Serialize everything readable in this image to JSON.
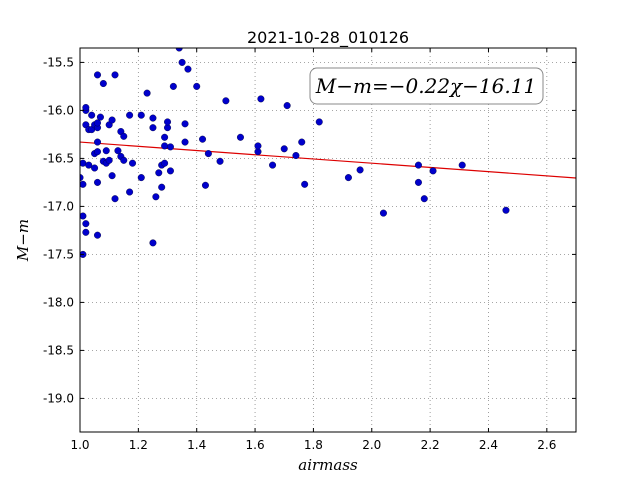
{
  "chart_data": {
    "type": "scatter",
    "title": "2021-10-28_010126",
    "xlabel": "airmass",
    "ylabel": "M−m",
    "annotation": "M−m=−0.22χ−16.11",
    "xlim": [
      1.0,
      2.7
    ],
    "ylim": [
      -15.35,
      -19.35
    ],
    "y_inverted": true,
    "grid": true,
    "x_ticks": [
      "1.0",
      "1.2",
      "1.4",
      "1.6",
      "1.8",
      "2.0",
      "2.2",
      "2.4",
      "2.6"
    ],
    "y_ticks": [
      "-15.5",
      "-16.0",
      "-16.5",
      "-17.0",
      "-17.5",
      "-18.0",
      "-18.5",
      "-19.0"
    ],
    "marker_color": "#0000cc",
    "fit_color": "#dd0000",
    "fit_line": {
      "slope": -0.22,
      "intercept": -16.11
    },
    "points": [
      [
        1.0,
        -16.7
      ],
      [
        1.01,
        -16.55
      ],
      [
        1.01,
        -17.1
      ],
      [
        1.01,
        -17.5
      ],
      [
        1.01,
        -16.77
      ],
      [
        1.02,
        -16.0
      ],
      [
        1.02,
        -15.97
      ],
      [
        1.02,
        -16.15
      ],
      [
        1.02,
        -17.27
      ],
      [
        1.02,
        -17.18
      ],
      [
        1.03,
        -16.57
      ],
      [
        1.03,
        -16.2
      ],
      [
        1.04,
        -16.05
      ],
      [
        1.04,
        -16.2
      ],
      [
        1.05,
        -16.6
      ],
      [
        1.05,
        -16.45
      ],
      [
        1.05,
        -16.15
      ],
      [
        1.06,
        -16.75
      ],
      [
        1.06,
        -17.3
      ],
      [
        1.06,
        -16.43
      ],
      [
        1.06,
        -16.33
      ],
      [
        1.06,
        -16.18
      ],
      [
        1.06,
        -16.13
      ],
      [
        1.06,
        -15.63
      ],
      [
        1.07,
        -16.07
      ],
      [
        1.08,
        -15.72
      ],
      [
        1.08,
        -16.53
      ],
      [
        1.09,
        -16.55
      ],
      [
        1.09,
        -16.42
      ],
      [
        1.1,
        -16.52
      ],
      [
        1.1,
        -16.15
      ],
      [
        1.11,
        -16.1
      ],
      [
        1.11,
        -16.68
      ],
      [
        1.12,
        -15.63
      ],
      [
        1.12,
        -16.92
      ],
      [
        1.13,
        -16.42
      ],
      [
        1.14,
        -16.48
      ],
      [
        1.14,
        -16.22
      ],
      [
        1.15,
        -16.52
      ],
      [
        1.15,
        -16.27
      ],
      [
        1.17,
        -16.05
      ],
      [
        1.17,
        -16.85
      ],
      [
        1.18,
        -16.55
      ],
      [
        1.21,
        -16.05
      ],
      [
        1.21,
        -16.7
      ],
      [
        1.23,
        -15.82
      ],
      [
        1.25,
        -16.08
      ],
      [
        1.25,
        -16.18
      ],
      [
        1.25,
        -17.38
      ],
      [
        1.26,
        -16.9
      ],
      [
        1.27,
        -16.65
      ],
      [
        1.28,
        -16.8
      ],
      [
        1.28,
        -16.57
      ],
      [
        1.29,
        -16.37
      ],
      [
        1.29,
        -16.28
      ],
      [
        1.29,
        -16.55
      ],
      [
        1.3,
        -16.18
      ],
      [
        1.3,
        -16.12
      ],
      [
        1.31,
        -16.38
      ],
      [
        1.31,
        -16.63
      ],
      [
        1.32,
        -15.75
      ],
      [
        1.34,
        -15.35
      ],
      [
        1.35,
        -15.5
      ],
      [
        1.36,
        -16.14
      ],
      [
        1.36,
        -16.33
      ],
      [
        1.37,
        -15.57
      ],
      [
        1.4,
        -15.75
      ],
      [
        1.42,
        -16.3
      ],
      [
        1.43,
        -16.78
      ],
      [
        1.44,
        -16.45
      ],
      [
        1.48,
        -16.53
      ],
      [
        1.5,
        -15.9
      ],
      [
        1.55,
        -16.28
      ],
      [
        1.61,
        -16.43
      ],
      [
        1.61,
        -16.37
      ],
      [
        1.62,
        -15.88
      ],
      [
        1.66,
        -16.57
      ],
      [
        1.7,
        -16.4
      ],
      [
        1.71,
        -15.95
      ],
      [
        1.74,
        -16.47
      ],
      [
        1.76,
        -16.33
      ],
      [
        1.77,
        -16.77
      ],
      [
        1.82,
        -16.12
      ],
      [
        1.92,
        -16.7
      ],
      [
        1.96,
        -16.62
      ],
      [
        2.04,
        -17.07
      ],
      [
        2.16,
        -16.57
      ],
      [
        2.16,
        -16.75
      ],
      [
        2.18,
        -16.92
      ],
      [
        2.21,
        -16.63
      ],
      [
        2.31,
        -16.57
      ],
      [
        2.46,
        -17.04
      ]
    ]
  }
}
